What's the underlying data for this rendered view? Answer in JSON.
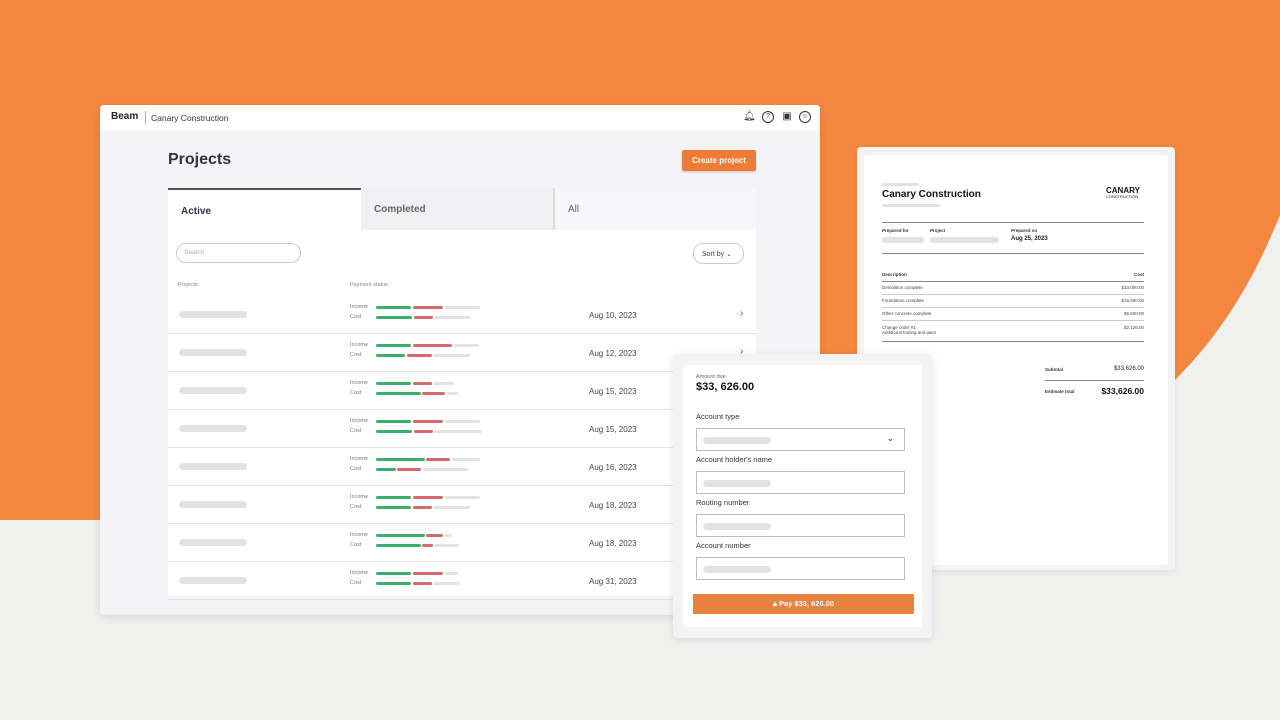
{
  "brand": {
    "logo": "Beam",
    "org": "Canary Construction",
    "accent": "#ef7c36",
    "income_color": "#3dae69",
    "cost_color": "#d46a6a"
  },
  "header_icons": [
    "bell-icon",
    "help-icon",
    "gift-icon",
    "user-icon"
  ],
  "projects": {
    "title": "Projects",
    "create_label": "Create project",
    "tabs": [
      {
        "label": "Active"
      },
      {
        "label": "Completed"
      },
      {
        "label": "All"
      }
    ],
    "search_placeholder": "Search",
    "sort_label": "Sort by",
    "columns": {
      "projects": "Projects",
      "payment_status": "Payment status"
    },
    "income_label": "Income",
    "cost_label": "Cost",
    "rows": [
      {
        "date": "Aug 10, 2023",
        "income": [
          34,
          29,
          34
        ],
        "cost": [
          35,
          18,
          35
        ]
      },
      {
        "date": "Aug 12, 2023",
        "income": [
          34,
          38,
          24
        ],
        "cost": [
          28,
          24,
          35
        ]
      },
      {
        "date": "Aug 15, 2023",
        "income": [
          34,
          18,
          20
        ],
        "cost": [
          43,
          22,
          11
        ]
      },
      {
        "date": "Aug 15, 2023",
        "income": [
          34,
          29,
          34
        ],
        "cost": [
          35,
          18,
          46
        ]
      },
      {
        "date": "Aug 16, 2023",
        "income": [
          47,
          23,
          27
        ],
        "cost": [
          19,
          23,
          43
        ]
      },
      {
        "date": "Aug 18, 2023",
        "income": [
          34,
          29,
          34
        ],
        "cost": [
          34,
          18,
          35
        ]
      },
      {
        "date": "Aug 18, 2023",
        "income": [
          47,
          16,
          7
        ],
        "cost": [
          43,
          10,
          24
        ]
      },
      {
        "date": "Aug 31, 2023",
        "income": [
          34,
          29,
          13
        ],
        "cost": [
          34,
          18,
          26
        ]
      }
    ]
  },
  "payment": {
    "amount_label": "Amount due",
    "amount": "$33, 626.00",
    "fields": [
      {
        "label": "Account type"
      },
      {
        "label": "Account holder's name"
      },
      {
        "label": "Routing number"
      },
      {
        "label": "Account number"
      }
    ],
    "pay_label": "Pay $33, 626.00"
  },
  "invoice": {
    "title": "Canary Construction",
    "logo_top": "CANARY",
    "logo_bottom": "CONSTRUCTION",
    "prepared_for": "Prepared for",
    "project": "Project",
    "prepared_on": "Prepared on",
    "date": "Aug 25, 2023",
    "description": "Description",
    "cost": "Cost",
    "items": [
      {
        "desc": "Demolition complete",
        "cost": "$10,000.00"
      },
      {
        "desc": "Foundation complete",
        "cost": "$15,000.00"
      },
      {
        "desc": "Other concrete complete",
        "cost": "$6,500.00"
      },
      {
        "desc": "Change order #1",
        "desc2": "Additional footing and piers",
        "cost": "$2,126.00"
      }
    ],
    "subtotal_label": "Subtotal",
    "subtotal": "$33,626.00",
    "total_label": "Estimate total",
    "total": "$33,626.00"
  }
}
